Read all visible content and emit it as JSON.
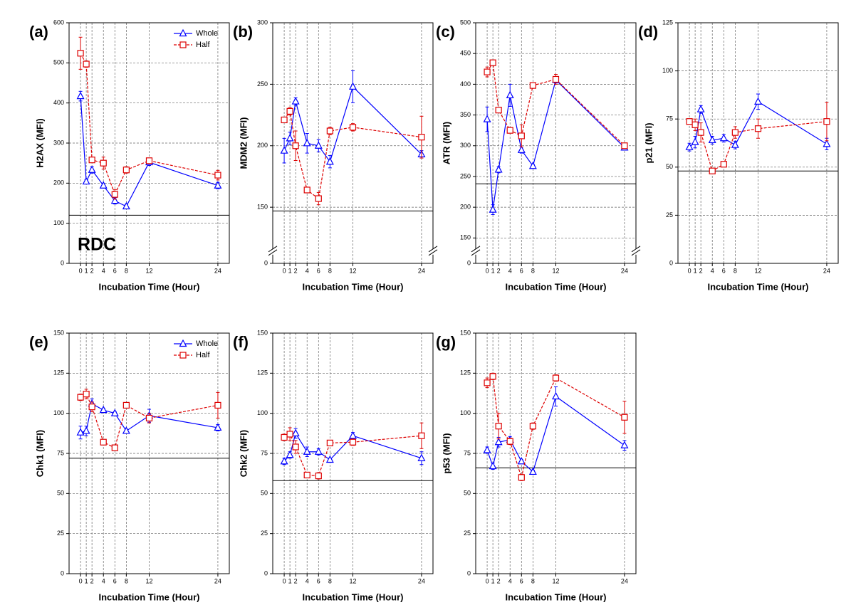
{
  "chart_data": [
    {
      "type": "line",
      "panel_label": "(a)",
      "xlabel": "Incubation Time (Hour)",
      "ylabel": "H2AX (MFI)",
      "annotation": "RDC",
      "x": [
        0,
        1,
        2,
        4,
        6,
        8,
        12,
        24
      ],
      "xlim": [
        -2,
        26
      ],
      "xticks": [
        0,
        1,
        2,
        4,
        6,
        8,
        12,
        24
      ],
      "ylim": [
        0,
        600
      ],
      "yticks": [
        0,
        100,
        200,
        300,
        400,
        500,
        600
      ],
      "grid": true,
      "legend": "upper right",
      "reference_line": 120,
      "series": [
        {
          "name": "Whole",
          "color": "#0000ff",
          "linestyle": "solid",
          "marker": "triangle",
          "values": [
            417,
            204,
            233,
            194,
            156,
            142,
            252,
            194
          ],
          "errors": [
            12,
            5,
            8,
            5,
            8,
            5,
            8,
            8
          ]
        },
        {
          "name": "Half",
          "color": "#dd0000",
          "linestyle": "dashed",
          "marker": "square",
          "values": [
            524,
            497,
            258,
            250,
            172,
            233,
            256,
            220
          ],
          "errors": [
            40,
            8,
            5,
            15,
            12,
            8,
            5,
            12
          ]
        }
      ]
    },
    {
      "type": "line",
      "panel_label": "(b)",
      "xlabel": "Incubation Time (Hour)",
      "ylabel": "MDM2 (MFI)",
      "x": [
        0,
        1,
        2,
        4,
        6,
        8,
        12,
        24
      ],
      "xlim": [
        -2,
        26
      ],
      "xticks": [
        0,
        1,
        2,
        4,
        6,
        8,
        12,
        24
      ],
      "ylim": [
        0,
        300
      ],
      "ybreak": 120,
      "yticks": [
        0,
        150,
        200,
        250,
        300
      ],
      "grid": true,
      "reference_line": 147,
      "series": [
        {
          "name": "Whole",
          "color": "#0000ff",
          "linestyle": "solid",
          "marker": "triangle",
          "values": [
            196,
            206,
            236,
            202,
            200,
            187,
            248,
            193
          ],
          "errors": [
            10,
            5,
            3,
            8,
            5,
            5,
            13,
            3
          ]
        },
        {
          "name": "Half",
          "color": "#dd0000",
          "linestyle": "dashed",
          "marker": "square",
          "values": [
            221,
            228,
            200,
            164,
            157,
            212,
            215,
            207
          ],
          "errors": [
            2,
            3,
            12,
            2,
            5,
            3,
            3,
            17
          ]
        }
      ]
    },
    {
      "type": "line",
      "panel_label": "(c)",
      "xlabel": "Incubation Time (Hour)",
      "ylabel": "ATR (MFI)",
      "x": [
        0,
        1,
        2,
        4,
        6,
        8,
        12,
        24
      ],
      "xlim": [
        -2,
        26
      ],
      "xticks": [
        0,
        1,
        2,
        4,
        6,
        8,
        12,
        24
      ],
      "ylim": [
        0,
        500
      ],
      "ybreak": 140,
      "yticks": [
        0,
        150,
        200,
        250,
        300,
        350,
        400,
        450,
        500
      ],
      "grid": true,
      "reference_line": 238,
      "series": [
        {
          "name": "Whole",
          "color": "#0000ff",
          "linestyle": "solid",
          "marker": "triangle",
          "values": [
            343,
            196,
            261,
            382,
            293,
            267,
            407,
            297
          ],
          "errors": [
            20,
            8,
            5,
            18,
            5,
            3,
            5,
            3
          ]
        },
        {
          "name": "Half",
          "color": "#dd0000",
          "linestyle": "dashed",
          "marker": "square",
          "values": [
            420,
            435,
            358,
            325,
            316,
            398,
            408,
            300
          ],
          "errors": [
            8,
            3,
            3,
            3,
            18,
            3,
            8,
            3
          ]
        }
      ]
    },
    {
      "type": "line",
      "panel_label": "(d)",
      "xlabel": "Incubation Time (Hour)",
      "ylabel": "p21 (MFI)",
      "x": [
        0,
        1,
        2,
        4,
        6,
        8,
        12,
        24
      ],
      "xlim": [
        -2,
        26
      ],
      "xticks": [
        0,
        1,
        2,
        4,
        6,
        8,
        12,
        24
      ],
      "ylim": [
        0,
        125
      ],
      "yticks": [
        0,
        25,
        50,
        75,
        100,
        125
      ],
      "grid": true,
      "reference_line": 48,
      "series": [
        {
          "name": "Whole",
          "color": "#0000ff",
          "linestyle": "solid",
          "marker": "triangle",
          "values": [
            60.4,
            63,
            80,
            64,
            65,
            61.5,
            84,
            62
          ],
          "errors": [
            2,
            3,
            2,
            2,
            2,
            2,
            4,
            3
          ]
        },
        {
          "name": "Half",
          "color": "#dd0000",
          "linestyle": "dashed",
          "marker": "square",
          "values": [
            73.7,
            72,
            68,
            48,
            51.5,
            68,
            70,
            73.7
          ],
          "errors": [
            1,
            3,
            5,
            1,
            1,
            3,
            5,
            10
          ]
        }
      ]
    },
    {
      "type": "line",
      "panel_label": "(e)",
      "xlabel": "Incubation Time (Hour)",
      "ylabel": "Chk1 (MFI)",
      "x": [
        0,
        1,
        2,
        4,
        6,
        8,
        12,
        24
      ],
      "xlim": [
        -2,
        26
      ],
      "xticks": [
        0,
        1,
        2,
        4,
        6,
        8,
        12,
        24
      ],
      "ylim": [
        0,
        150
      ],
      "yticks": [
        0,
        25,
        50,
        75,
        100,
        125,
        150
      ],
      "grid": true,
      "legend": "upper right",
      "reference_line": 72,
      "series": [
        {
          "name": "Whole",
          "color": "#0000ff",
          "linestyle": "solid",
          "marker": "triangle",
          "values": [
            88,
            89,
            106,
            102,
            100,
            89,
            98.5,
            91
          ],
          "errors": [
            4,
            3,
            3,
            1,
            1,
            1,
            4,
            2
          ]
        },
        {
          "name": "Half",
          "color": "#dd0000",
          "linestyle": "dashed",
          "marker": "square",
          "values": [
            110,
            112,
            104,
            82,
            78.5,
            105,
            97,
            105
          ],
          "errors": [
            2,
            3,
            3,
            1,
            1,
            1,
            3,
            8
          ]
        }
      ]
    },
    {
      "type": "line",
      "panel_label": "(f)",
      "xlabel": "Incubation Time (Hour)",
      "ylabel": "Chk2 (MFI)",
      "x": [
        0,
        1,
        2,
        4,
        6,
        8,
        12,
        24
      ],
      "xlim": [
        -2,
        26
      ],
      "xticks": [
        0,
        1,
        2,
        4,
        6,
        8,
        12,
        24
      ],
      "ylim": [
        0,
        150
      ],
      "yticks": [
        0,
        25,
        50,
        75,
        100,
        125,
        150
      ],
      "grid": true,
      "reference_line": 58,
      "series": [
        {
          "name": "Whole",
          "color": "#0000ff",
          "linestyle": "solid",
          "marker": "triangle",
          "values": [
            70,
            74,
            87.5,
            76,
            76,
            71,
            86,
            72
          ],
          "errors": [
            2,
            2,
            3,
            3,
            2,
            1,
            2,
            4
          ]
        },
        {
          "name": "Half",
          "color": "#dd0000",
          "linestyle": "dashed",
          "marker": "square",
          "values": [
            85,
            87,
            79,
            61.5,
            61,
            81.5,
            82,
            86
          ],
          "errors": [
            2,
            4,
            4,
            1,
            2,
            1,
            2,
            8
          ]
        }
      ]
    },
    {
      "type": "line",
      "panel_label": "(g)",
      "xlabel": "Incubation Time (Hour)",
      "ylabel": "p53 (MFI)",
      "x": [
        0,
        1,
        2,
        4,
        6,
        8,
        12,
        24
      ],
      "xlim": [
        -2,
        26
      ],
      "xticks": [
        0,
        1,
        2,
        4,
        6,
        8,
        12,
        24
      ],
      "ylim": [
        0,
        150
      ],
      "yticks": [
        0,
        25,
        50,
        75,
        100,
        125,
        150
      ],
      "grid": true,
      "reference_line": 66,
      "series": [
        {
          "name": "Whole",
          "color": "#0000ff",
          "linestyle": "solid",
          "marker": "triangle",
          "values": [
            77,
            67,
            82,
            83.5,
            70,
            63.5,
            110.5,
            80
          ],
          "errors": [
            2,
            2,
            3,
            2,
            1,
            1,
            6,
            3
          ]
        },
        {
          "name": "Half",
          "color": "#dd0000",
          "linestyle": "dashed",
          "marker": "square",
          "values": [
            119,
            123,
            92,
            82.5,
            60,
            92,
            122,
            97.5
          ],
          "errors": [
            3,
            2,
            8,
            2,
            2,
            2,
            2,
            10
          ]
        }
      ]
    }
  ]
}
